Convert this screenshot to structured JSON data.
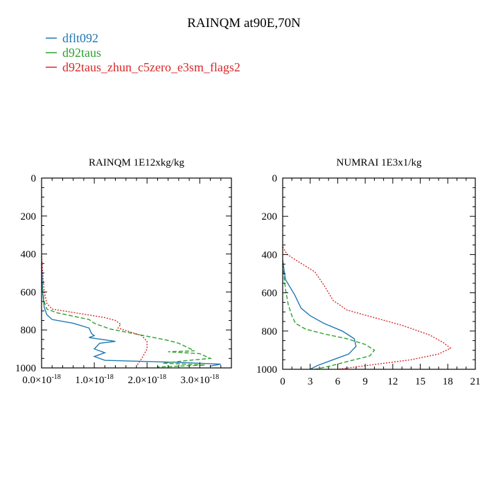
{
  "title": "RAINQM at90E,70N",
  "legend": {
    "placement": "top-left",
    "entries": [
      {
        "label": "dflt092",
        "color": "#1f77b4",
        "dash": "solid"
      },
      {
        "label": "d92taus",
        "color": "#2ca02c",
        "dash": "dashed"
      },
      {
        "label": "d92taus_zhun_c5zero_e3sm_flags2",
        "color": "#d62728",
        "dash": "dotted"
      }
    ]
  },
  "chart_data": [
    {
      "type": "line",
      "title": "RAINQM  1E12xkg/kg",
      "xlabel": "",
      "ylabel": "",
      "xlim": [
        0,
        3.6
      ],
      "ylim": [
        1000,
        0
      ],
      "grid": false,
      "xticks": [
        {
          "value": 0,
          "mant": "0.0",
          "exp": "-18"
        },
        {
          "value": 1,
          "mant": "1.0",
          "exp": "-18"
        },
        {
          "value": 2,
          "mant": "2.0",
          "exp": "-18"
        },
        {
          "value": 3,
          "mant": "3.0",
          "exp": "-18"
        }
      ],
      "yticks": [
        0,
        200,
        400,
        600,
        800,
        1000
      ],
      "series": [
        {
          "name": "dflt092",
          "color": "#1f77b4",
          "dash": "solid",
          "x": [
            0,
            0.02,
            0.05,
            0.1,
            0.2,
            0.6,
            0.9,
            0.95,
            1.0,
            0.9,
            1.4,
            1.1,
            1.0,
            1.2,
            1.0,
            1.2,
            2.5,
            3.4,
            3.2
          ],
          "y": [
            450,
            600,
            680,
            720,
            745,
            765,
            790,
            820,
            830,
            840,
            860,
            870,
            900,
            920,
            940,
            960,
            970,
            980,
            990
          ]
        },
        {
          "name": "d92taus",
          "color": "#2ca02c",
          "dash": "dashed",
          "x": [
            0,
            0.05,
            0.1,
            0.3,
            0.9,
            1.0,
            1.3,
            2.4,
            2.6,
            2.9,
            2.4,
            3.0,
            3.2,
            2.8,
            2.3,
            3.1,
            2.2
          ],
          "y": [
            550,
            650,
            690,
            710,
            745,
            765,
            795,
            855,
            870,
            910,
            915,
            925,
            950,
            960,
            975,
            985,
            995
          ]
        },
        {
          "name": "d92taus_zhun_c5zero_e3sm_flags2",
          "color": "#d62728",
          "dash": "dotted",
          "x": [
            0,
            0.05,
            0.1,
            0.2,
            1.2,
            1.4,
            1.5,
            1.45,
            1.9,
            2.0,
            2.0,
            1.9,
            1.8
          ],
          "y": [
            410,
            600,
            660,
            690,
            735,
            750,
            770,
            790,
            830,
            860,
            900,
            950,
            990
          ]
        }
      ]
    },
    {
      "type": "line",
      "title": "NUMRAI  1E3x1/kg",
      "xlabel": "",
      "ylabel": "",
      "xlim": [
        0,
        21
      ],
      "ylim": [
        1000,
        0
      ],
      "grid": false,
      "xticks": [
        {
          "value": 0,
          "mant": "0"
        },
        {
          "value": 3,
          "mant": "3"
        },
        {
          "value": 6,
          "mant": "6"
        },
        {
          "value": 9,
          "mant": "9"
        },
        {
          "value": 12,
          "mant": "12"
        },
        {
          "value": 15,
          "mant": "15"
        },
        {
          "value": 18,
          "mant": "18"
        },
        {
          "value": 21,
          "mant": "21"
        }
      ],
      "yticks": [
        0,
        200,
        400,
        600,
        800,
        1000
      ],
      "series": [
        {
          "name": "dflt092",
          "color": "#1f77b4",
          "dash": "solid",
          "x": [
            0,
            0.3,
            0.8,
            1.3,
            1.6,
            2.0,
            3.0,
            4.5,
            6.5,
            7.8,
            8.0,
            7.2,
            5.5,
            3.8,
            3.0
          ],
          "y": [
            430,
            530,
            570,
            610,
            640,
            680,
            720,
            760,
            800,
            840,
            880,
            920,
            950,
            980,
            1000
          ]
        },
        {
          "name": "d92taus",
          "color": "#2ca02c",
          "dash": "dashed",
          "x": [
            0,
            0.3,
            0.6,
            1.0,
            1.4,
            2.5,
            4.5,
            7.0,
            9.0,
            10.0,
            9.5,
            7.0,
            5.0,
            3.5
          ],
          "y": [
            450,
            580,
            660,
            720,
            760,
            790,
            815,
            840,
            870,
            900,
            930,
            960,
            985,
            1000
          ]
        },
        {
          "name": "d92taus_zhun_c5zero_e3sm_flags2",
          "color": "#d62728",
          "dash": "dotted",
          "x": [
            0,
            0.5,
            1.8,
            3.5,
            4.5,
            5.5,
            7.0,
            10.0,
            13.0,
            16.0,
            17.5,
            18.3,
            17.0,
            14.0,
            10.0,
            6.0
          ],
          "y": [
            360,
            400,
            440,
            490,
            560,
            640,
            690,
            730,
            770,
            820,
            860,
            890,
            920,
            950,
            975,
            1000
          ]
        }
      ]
    }
  ]
}
